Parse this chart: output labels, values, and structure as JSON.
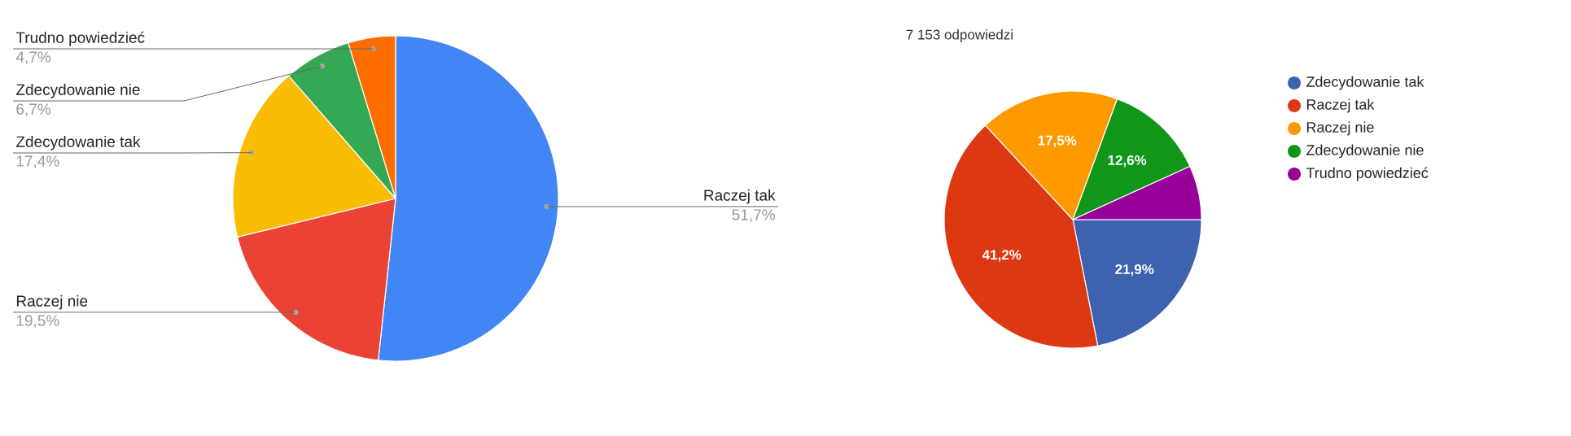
{
  "chart_data": [
    {
      "type": "pie",
      "categories": [
        "Raczej tak",
        "Raczej nie",
        "Zdecydowanie tak",
        "Zdecydowanie nie",
        "Trudno powiedzieć"
      ],
      "values": [
        51.7,
        19.5,
        17.4,
        6.7,
        4.7
      ],
      "colors": [
        "#4285f4",
        "#ea4335",
        "#fbbc04",
        "#34a853",
        "#ff6d01"
      ],
      "value_labels": [
        "51,7%",
        "19,5%",
        "17,4%",
        "6,7%",
        "4,7%"
      ]
    },
    {
      "type": "pie",
      "title": "7 153 odpowiedzi",
      "categories": [
        "Zdecydowanie tak",
        "Raczej tak",
        "Raczej nie",
        "Zdecydowanie nie",
        "Trudno powiedzieć"
      ],
      "values": [
        21.9,
        41.2,
        17.5,
        12.6,
        6.8
      ],
      "colors": [
        "#3d62b0",
        "#dc3912",
        "#ff9900",
        "#109618",
        "#990099"
      ],
      "value_labels": [
        "21,9%",
        "41,2%",
        "17,5%",
        "12,6%",
        null
      ],
      "legend": "right"
    }
  ]
}
